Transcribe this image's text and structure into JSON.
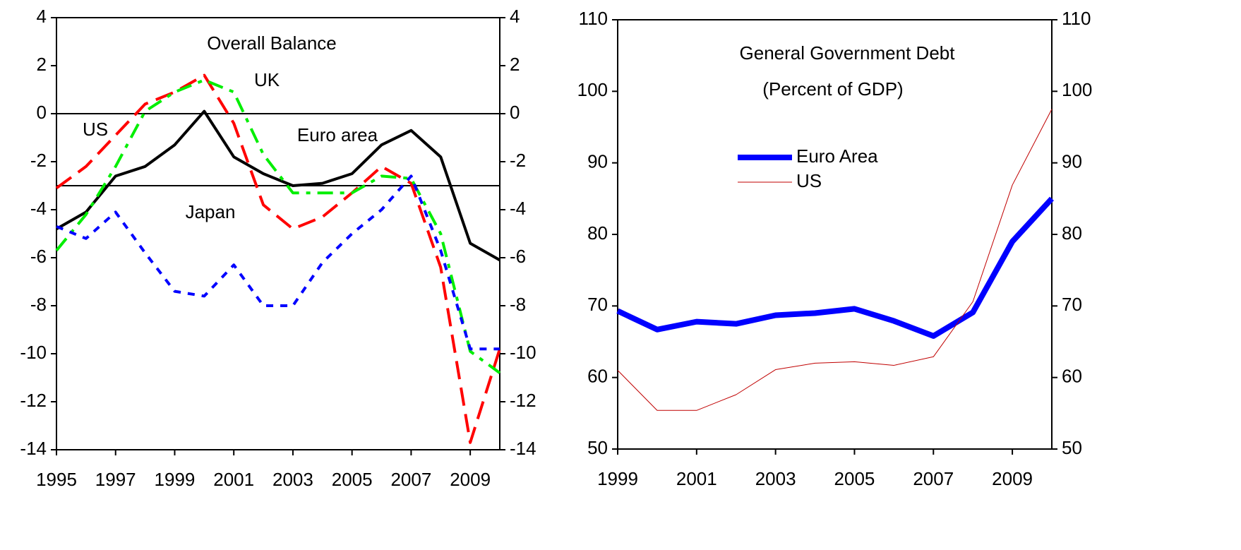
{
  "chart_data": [
    {
      "type": "line",
      "title": "Overall Balance",
      "x": [
        1995,
        1996,
        1997,
        1998,
        1999,
        2000,
        2001,
        2002,
        2003,
        2004,
        2005,
        2006,
        2007,
        2008,
        2009,
        2010
      ],
      "xlim": [
        1995,
        2010
      ],
      "xticks": [
        1995,
        1997,
        1999,
        2001,
        2003,
        2005,
        2007,
        2009
      ],
      "ylim": [
        -14,
        4
      ],
      "yticks": [
        4,
        2,
        0,
        -2,
        -4,
        -6,
        -8,
        -10,
        -12,
        -14
      ],
      "reference_lines": [
        0,
        -3
      ],
      "series": [
        {
          "name": "Euro area",
          "color": "#000000",
          "dash": "solid",
          "values": [
            -4.8,
            -4.1,
            -2.6,
            -2.2,
            -1.3,
            0.1,
            -1.8,
            -2.5,
            -3.0,
            -2.9,
            -2.5,
            -1.3,
            -0.7,
            -1.8,
            -5.4,
            -6.1
          ]
        },
        {
          "name": "US",
          "color": "#ff0000",
          "dash": "dashed",
          "values": [
            -3.1,
            -2.2,
            -0.9,
            0.4,
            0.9,
            1.6,
            -0.4,
            -3.8,
            -4.8,
            -4.3,
            -3.3,
            -2.2,
            -2.9,
            -6.4,
            -13.7,
            -9.8
          ]
        },
        {
          "name": "UK",
          "color": "#00ee00",
          "dash": "dashdot",
          "values": [
            -5.7,
            -4.2,
            -2.2,
            0.1,
            0.9,
            1.4,
            0.9,
            -1.7,
            -3.3,
            -3.3,
            -3.3,
            -2.6,
            -2.7,
            -5.0,
            -9.9,
            -10.8
          ]
        },
        {
          "name": "Japan",
          "color": "#0000ff",
          "dash": "dotted",
          "values": [
            -4.7,
            -5.2,
            -4.1,
            -5.8,
            -7.4,
            -7.6,
            -6.3,
            -8.0,
            -8.0,
            -6.2,
            -5.0,
            -4.0,
            -2.6,
            -5.7,
            -9.8,
            -9.8
          ]
        }
      ]
    },
    {
      "type": "line",
      "title": "General Government Debt",
      "subtitle": "(Percent of GDP)",
      "x": [
        1999,
        2000,
        2001,
        2002,
        2003,
        2004,
        2005,
        2006,
        2007,
        2008,
        2009,
        2010
      ],
      "xlim": [
        1999,
        2010
      ],
      "xticks": [
        1999,
        2001,
        2003,
        2005,
        2007,
        2009
      ],
      "ylim": [
        50,
        110
      ],
      "yticks": [
        110,
        100,
        90,
        80,
        70,
        60,
        50
      ],
      "legend": "center-left",
      "series": [
        {
          "name": "Euro Area",
          "color": "#0000ff",
          "width": 8,
          "values": [
            69.3,
            66.7,
            67.8,
            67.5,
            68.7,
            69.0,
            69.6,
            67.9,
            65.8,
            69.1,
            79.0,
            85.0
          ]
        },
        {
          "name": "US",
          "color": "#c00000",
          "width": 1,
          "values": [
            61.0,
            55.4,
            55.4,
            57.6,
            61.1,
            62.0,
            62.2,
            61.7,
            62.9,
            70.6,
            86.9,
            97.5
          ]
        }
      ]
    }
  ]
}
